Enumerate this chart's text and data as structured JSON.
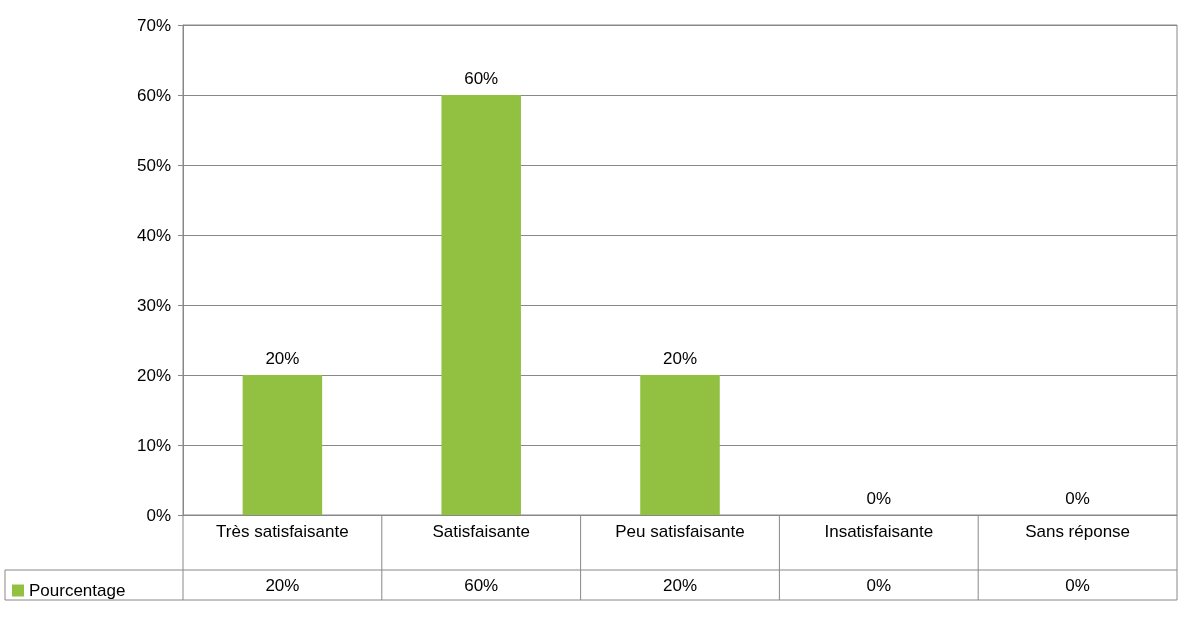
{
  "chart_data": {
    "type": "bar",
    "categories": [
      "Très satisfaisante",
      "Satisfaisante",
      "Peu satisfaisante",
      "Insatisfaisante",
      "Sans réponse"
    ],
    "series": [
      {
        "name": "Pourcentage",
        "color": "#92c040",
        "values": [
          20,
          60,
          20,
          0,
          0
        ],
        "value_labels": [
          "20%",
          "60%",
          "20%",
          "0%",
          "0%"
        ]
      }
    ],
    "ylim": [
      0,
      70
    ],
    "yticks": [
      {
        "value": 0,
        "label": "0%"
      },
      {
        "value": 10,
        "label": "10%"
      },
      {
        "value": 20,
        "label": "20%"
      },
      {
        "value": 30,
        "label": "30%"
      },
      {
        "value": 40,
        "label": "40%"
      },
      {
        "value": 50,
        "label": "50%"
      },
      {
        "value": 60,
        "label": "60%"
      },
      {
        "value": 70,
        "label": "70%"
      }
    ],
    "grid": "y",
    "legend": "bottom left"
  }
}
